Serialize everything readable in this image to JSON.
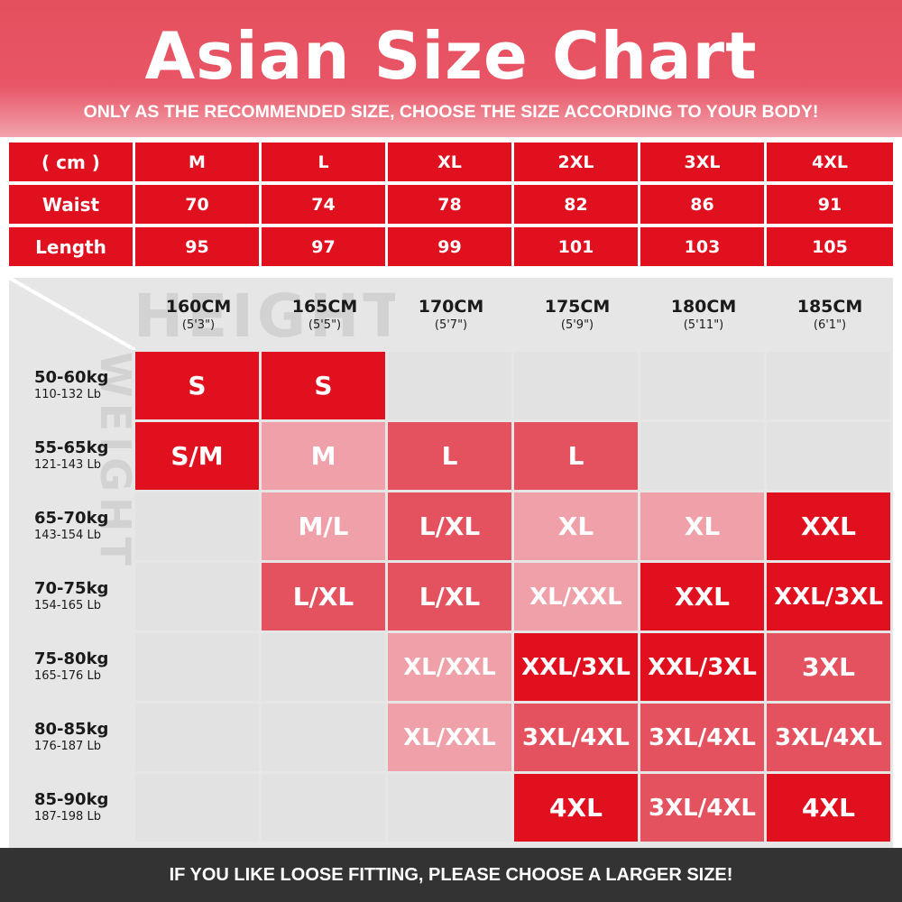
{
  "header": {
    "title": "Asian Size Chart",
    "subtitle": "ONLY AS THE RECOMMENDED SIZE, CHOOSE THE SIZE ACCORDING TO YOUR BODY!"
  },
  "measure_table": {
    "columns": [
      "( cm )",
      "M",
      "L",
      "XL",
      "2XL",
      "3XL",
      "4XL"
    ],
    "rows": [
      {
        "label": "Waist",
        "values": [
          "70",
          "74",
          "78",
          "82",
          "86",
          "91"
        ]
      },
      {
        "label": "Length",
        "values": [
          "95",
          "97",
          "99",
          "101",
          "103",
          "105"
        ]
      }
    ]
  },
  "fit_grid": {
    "watermark_height": "HEIGHT",
    "watermark_weight": "WEIGHT",
    "heights": [
      {
        "cm": "160CM",
        "ft": "(5'3\")"
      },
      {
        "cm": "165CM",
        "ft": "(5'5\")"
      },
      {
        "cm": "170CM",
        "ft": "(5'7\")"
      },
      {
        "cm": "175CM",
        "ft": "(5'9\")"
      },
      {
        "cm": "180CM",
        "ft": "(5'11\")"
      },
      {
        "cm": "185CM",
        "ft": "(6'1\")"
      }
    ],
    "weights": [
      {
        "kg": "50-60kg",
        "lb": "110-132 Lb"
      },
      {
        "kg": "55-65kg",
        "lb": "121-143 Lb"
      },
      {
        "kg": "65-70kg",
        "lb": "143-154 Lb"
      },
      {
        "kg": "70-75kg",
        "lb": "154-165 Lb"
      },
      {
        "kg": "75-80kg",
        "lb": "165-176 Lb"
      },
      {
        "kg": "80-85kg",
        "lb": "176-187 Lb"
      },
      {
        "kg": "85-90kg",
        "lb": "187-198 Lb"
      }
    ],
    "cells": [
      [
        "S",
        "S",
        "",
        "",
        "",
        ""
      ],
      [
        "S/M",
        "M",
        "L",
        "L",
        "",
        ""
      ],
      [
        "",
        "M/L",
        "L/XL",
        "XL",
        "XL",
        "XXL"
      ],
      [
        "",
        "L/XL",
        "L/XL",
        "XL/XXL",
        "XXL",
        "XXL/3XL"
      ],
      [
        "",
        "",
        "XL/XXL",
        "XXL/3XL",
        "XXL/3XL",
        "3XL"
      ],
      [
        "",
        "",
        "XL/XXL",
        "3XL/4XL",
        "3XL/4XL",
        "3XL/4XL"
      ],
      [
        "",
        "",
        "",
        "4XL",
        "3XL/4XL",
        "4XL"
      ]
    ],
    "shades": [
      [
        "dark",
        "dark",
        "",
        "",
        "",
        ""
      ],
      [
        "dark",
        "light",
        "medium",
        "medium",
        "",
        ""
      ],
      [
        "",
        "light",
        "medium",
        "light",
        "light",
        "dark"
      ],
      [
        "",
        "medium",
        "medium",
        "light",
        "dark",
        "dark"
      ],
      [
        "",
        "",
        "light",
        "dark",
        "dark",
        "medium"
      ],
      [
        "",
        "",
        "light",
        "medium",
        "medium",
        "medium"
      ],
      [
        "",
        "",
        "",
        "dark",
        "medium",
        "dark"
      ]
    ],
    "colors": {
      "dark": "#e0101f",
      "medium": "#e5525f",
      "light": "#f0a0a8",
      "empty": "#e2e2e2"
    }
  },
  "footer": {
    "note": "IF YOU LIKE LOOSE FITTING, PLEASE CHOOSE A LARGER SIZE!"
  }
}
